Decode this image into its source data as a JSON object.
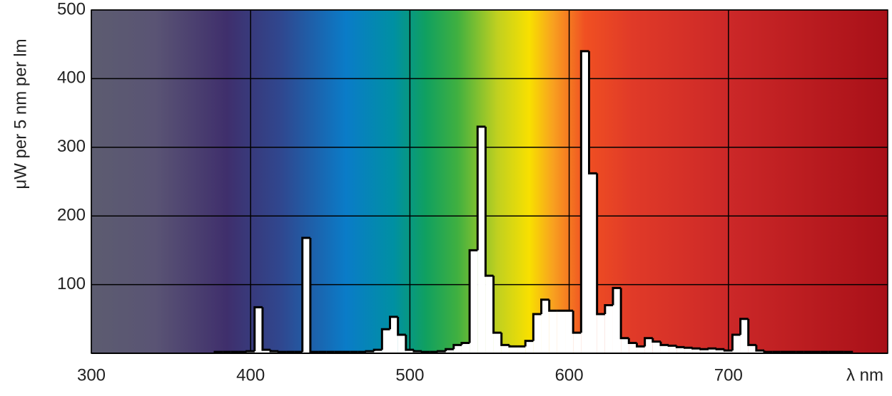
{
  "chart_data": {
    "type": "histogram",
    "y_label": "μW per 5 nm per lm",
    "x_label": "λ nm",
    "bins": [
      377.5,
      382.5,
      387.5,
      392.5,
      397.5,
      402.5,
      407.5,
      412.5,
      417.5,
      422.5,
      427.5,
      432.5,
      437.5,
      442.5,
      447.5,
      452.5,
      457.5,
      462.5,
      467.5,
      472.5,
      477.5,
      482.5,
      487.5,
      492.5,
      497.5,
      502.5,
      507.5,
      512.5,
      517.5,
      522.5,
      527.5,
      532.5,
      537.5,
      542.5,
      547.5,
      552.5,
      557.5,
      562.5,
      567.5,
      572.5,
      577.5,
      582.5,
      587.5,
      592.5,
      597.5,
      602.5,
      607.5,
      612.5,
      617.5,
      622.5,
      627.5,
      632.5,
      637.5,
      642.5,
      647.5,
      652.5,
      657.5,
      662.5,
      667.5,
      672.5,
      677.5,
      682.5,
      687.5,
      692.5,
      697.5,
      702.5,
      707.5,
      712.5,
      717.5,
      722.5,
      727.5,
      732.5,
      737.5,
      742.5,
      747.5,
      752.5,
      757.5,
      762.5,
      767.5,
      772.5,
      777.5
    ],
    "values": [
      2,
      2,
      2,
      2,
      3,
      67,
      5,
      3,
      2,
      2,
      2,
      168,
      2,
      2,
      2,
      2,
      2,
      2,
      2,
      3,
      5,
      35,
      53,
      27,
      5,
      3,
      2,
      2,
      3,
      6,
      12,
      15,
      150,
      330,
      113,
      30,
      12,
      10,
      10,
      18,
      57,
      78,
      62,
      62,
      62,
      30,
      440,
      262,
      57,
      70,
      95,
      22,
      15,
      10,
      22,
      17,
      12,
      11,
      9,
      8,
      7,
      6,
      7,
      6,
      4,
      27,
      50,
      12,
      4,
      2,
      2,
      2,
      2,
      2,
      2,
      2,
      2,
      2,
      2,
      2
    ],
    "color": "#ffffff",
    "outline_color": "#000000",
    "xlim": [
      300,
      800
    ],
    "xticks": [
      300,
      400,
      500,
      600,
      700
    ],
    "ylim": [
      0,
      500
    ],
    "yticks": [
      100,
      200,
      300,
      400,
      500
    ],
    "grid": true
  }
}
